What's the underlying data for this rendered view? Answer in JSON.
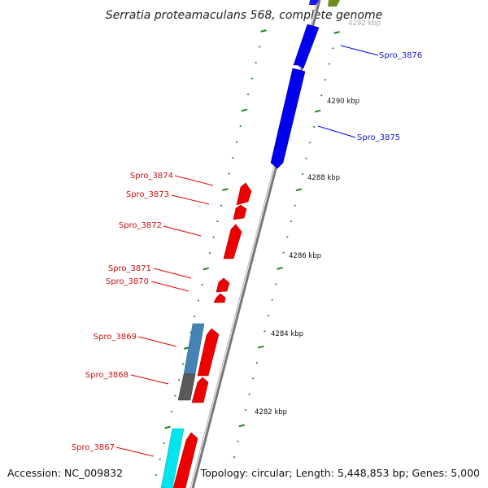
{
  "title": "Serratia proteamaculans 568, complete genome",
  "footer": {
    "accession": "Accession: NC_009832",
    "topology": "Topology: circular; Length: 5,448,853 bp; Genes: 5,000"
  },
  "colors": {
    "backbone": "#8a8a8a",
    "forward_gene": "#0000ee",
    "reverse_gene": "#ee0000",
    "blue_label": "#1a1acc",
    "red_label": "#cc1111",
    "tick": "#1a8a1a",
    "steel_blue": "#4682b4",
    "dark_gray": "#5a5a5a",
    "cyan": "#00e5ee",
    "olive": "#6b8e23"
  },
  "ticks": [
    {
      "label": "4292 kbp",
      "faded": true
    },
    {
      "label": "4290 kbp"
    },
    {
      "label": "4288 kbp"
    },
    {
      "label": "4286 kbp"
    },
    {
      "label": "4284 kbp"
    },
    {
      "label": "4282 kbp"
    }
  ],
  "genes": [
    {
      "name": "Spro_3876",
      "strand": "forward"
    },
    {
      "name": "Spro_3875",
      "strand": "forward"
    },
    {
      "name": "Spro_3874",
      "strand": "reverse"
    },
    {
      "name": "Spro_3873",
      "strand": "reverse"
    },
    {
      "name": "Spro_3872",
      "strand": "reverse"
    },
    {
      "name": "Spro_3871",
      "strand": "reverse"
    },
    {
      "name": "Spro_3870",
      "strand": "reverse"
    },
    {
      "name": "Spro_3869",
      "strand": "reverse"
    },
    {
      "name": "Spro_3868",
      "strand": "reverse"
    },
    {
      "name": "Spro_3867",
      "strand": "reverse"
    }
  ]
}
